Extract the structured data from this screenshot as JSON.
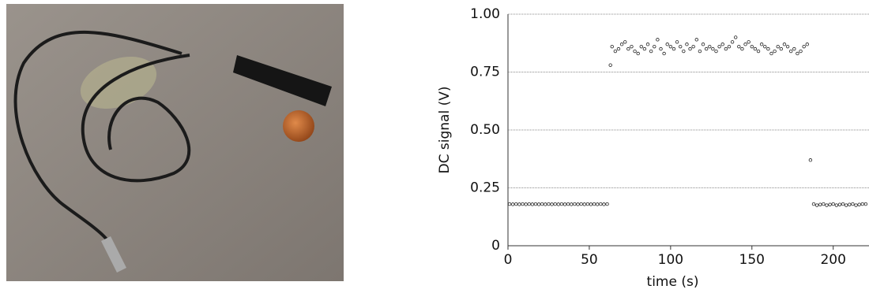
{
  "chart_data": {
    "type": "scatter",
    "x_label": "time (s)",
    "y_label": "DC signal (V)",
    "color": "#222222",
    "xlim": [
      0,
      222
    ],
    "ylim": [
      0,
      1
    ],
    "xticks": [
      0,
      50,
      100,
      150,
      200
    ],
    "yticks": [
      0,
      0.25,
      {
        "value": 0.5,
        "label": "0.50"
      },
      0.75,
      {
        "value": 1,
        "label": "1.00"
      }
    ],
    "grid": true,
    "x": [
      1,
      3,
      5,
      7,
      9,
      11,
      13,
      15,
      17,
      19,
      21,
      23,
      25,
      27,
      29,
      31,
      33,
      35,
      37,
      39,
      41,
      43,
      45,
      47,
      49,
      51,
      53,
      55,
      57,
      59,
      61,
      63,
      64,
      66,
      68,
      70,
      72,
      74,
      76,
      78,
      80,
      82,
      84,
      86,
      88,
      90,
      92,
      94,
      96,
      98,
      100,
      102,
      104,
      106,
      108,
      110,
      112,
      114,
      116,
      118,
      120,
      122,
      124,
      126,
      128,
      130,
      132,
      134,
      136,
      138,
      140,
      142,
      144,
      146,
      148,
      150,
      152,
      154,
      156,
      158,
      160,
      162,
      164,
      166,
      168,
      170,
      172,
      174,
      176,
      178,
      180,
      182,
      184,
      186,
      188,
      190,
      192,
      194,
      196,
      198,
      200,
      202,
      204,
      206,
      208,
      210,
      212,
      214,
      216,
      218,
      220
    ],
    "values": [
      0.18,
      0.179,
      0.18,
      0.179,
      0.18,
      0.179,
      0.18,
      0.179,
      0.18,
      0.179,
      0.18,
      0.179,
      0.18,
      0.179,
      0.18,
      0.179,
      0.18,
      0.179,
      0.18,
      0.179,
      0.18,
      0.179,
      0.18,
      0.179,
      0.18,
      0.179,
      0.18,
      0.179,
      0.18,
      0.179,
      0.18,
      0.78,
      0.86,
      0.84,
      0.85,
      0.87,
      0.88,
      0.85,
      0.86,
      0.84,
      0.83,
      0.86,
      0.85,
      0.87,
      0.84,
      0.86,
      0.89,
      0.85,
      0.83,
      0.87,
      0.86,
      0.85,
      0.88,
      0.86,
      0.84,
      0.87,
      0.85,
      0.86,
      0.89,
      0.84,
      0.87,
      0.85,
      0.86,
      0.85,
      0.84,
      0.86,
      0.87,
      0.85,
      0.86,
      0.88,
      0.9,
      0.86,
      0.85,
      0.87,
      0.88,
      0.86,
      0.85,
      0.84,
      0.87,
      0.86,
      0.85,
      0.83,
      0.84,
      0.86,
      0.85,
      0.87,
      0.86,
      0.84,
      0.85,
      0.83,
      0.84,
      0.86,
      0.87,
      0.37,
      0.18,
      0.175,
      0.178,
      0.18,
      0.175,
      0.178,
      0.18,
      0.175,
      0.178,
      0.18,
      0.175,
      0.178,
      0.18,
      0.175,
      0.178,
      0.18,
      0.18
    ]
  }
}
